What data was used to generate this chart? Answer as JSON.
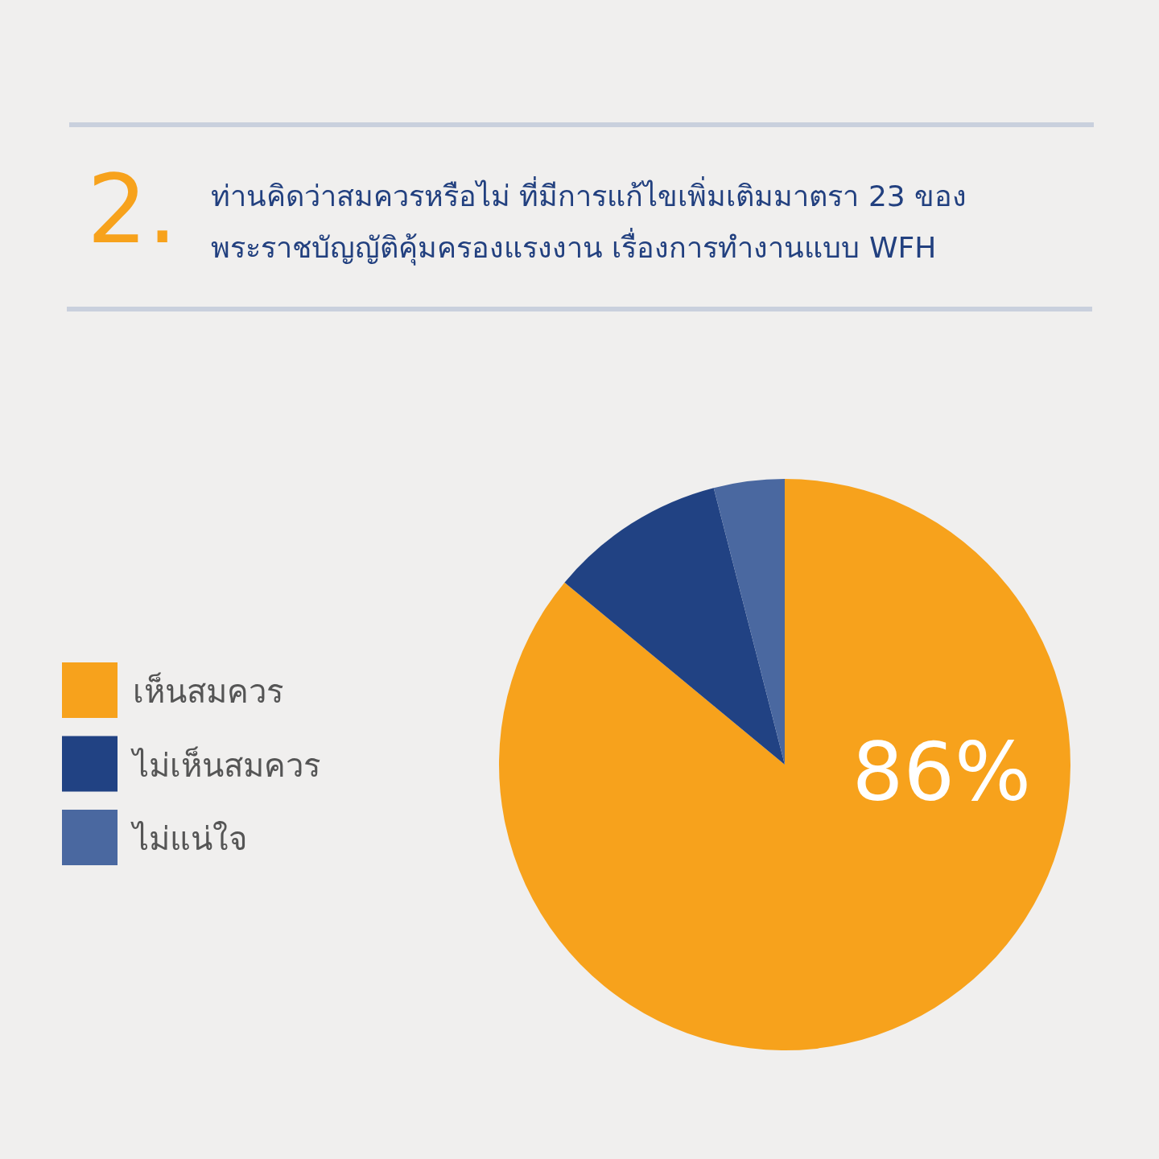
{
  "chart_data": {
    "type": "pie",
    "title": "ท่านคิดว่าสมควรหรือไม่ ที่มีการแก้ไขเพิ่มเติมมาตรา 23 ของ พระราชบัญญัติคุ้มครองแรงงาน เรื่องการทำงานแบบ WFH",
    "annotations": [
      "2."
    ],
    "categories": [
      "เห็นสมควร",
      "ไม่เห็นสมควร",
      "ไม่แน่ใจ"
    ],
    "values": [
      86,
      10,
      4
    ],
    "colors": [
      "#f7a21c",
      "#214283",
      "#4a68a0"
    ],
    "value_labels": [
      "86%",
      null,
      null
    ],
    "legend": "left"
  }
}
